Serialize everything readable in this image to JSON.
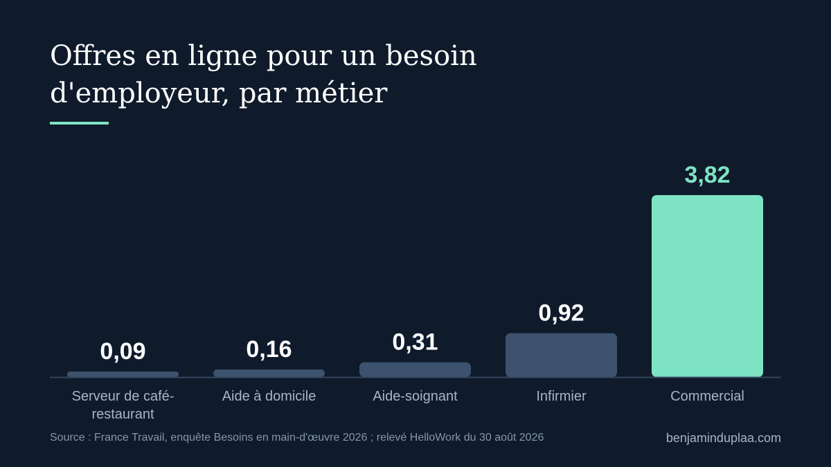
{
  "title": "Offres en ligne pour un besoin\nd'employeur, par métier",
  "colors": {
    "background": "#0f1b2b",
    "bar_default": "#3c526d",
    "bar_highlight": "#7ee3c3",
    "label_default": "#ffffff",
    "label_highlight": "#7ee3c3",
    "axis": "#34465c",
    "category_text": "#a9b5c5"
  },
  "chart_data": {
    "type": "bar",
    "categories": [
      "Serveur de café-restaurant",
      "Aide à domicile",
      "Aide-soignant",
      "Infirmier",
      "Commercial"
    ],
    "category_lines": [
      [
        "Serveur de café-",
        "restaurant"
      ],
      [
        "Aide à domicile"
      ],
      [
        "Aide-soignant"
      ],
      [
        "Infirmier"
      ],
      [
        "Commercial"
      ]
    ],
    "values": [
      0.09,
      0.16,
      0.31,
      0.92,
      3.82
    ],
    "value_labels": [
      "0,09",
      "0,16",
      "0,31",
      "0,92",
      "3,82"
    ],
    "highlight": "Commercial",
    "title": "Offres en ligne pour un besoin d'employeur, par métier",
    "xlabel": "",
    "ylabel": "",
    "ylim": [
      0,
      3.82
    ],
    "grid": false,
    "legend": "none"
  },
  "footer": {
    "source": "Source : France Travail, enquête Besoins en main-d'œuvre 2026 ; relevé HelloWork du 30 août 2026",
    "site": "benjaminduplaa.com"
  }
}
